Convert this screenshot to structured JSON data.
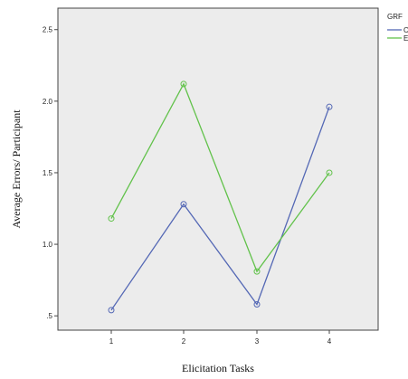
{
  "chart_data": {
    "type": "line",
    "xlabel": "Elicitation Tasks",
    "ylabel": "Average Errors/ Participant",
    "x": [
      1,
      2,
      3,
      4
    ],
    "x_ticks": [
      "1",
      "2",
      "3",
      "4"
    ],
    "ylim": [
      0.4,
      2.65
    ],
    "y_ticks": [
      "2.5",
      "2.0",
      "1.5",
      "1.0",
      ".5"
    ],
    "y_tick_values": [
      2.5,
      2.0,
      1.5,
      1.0,
      0.5
    ],
    "grid": false,
    "background": "#ececec",
    "legend_title": "GRF",
    "legend_position": "right",
    "series": [
      {
        "name": "C",
        "color": "#5468b5",
        "values": [
          0.54,
          1.28,
          0.58,
          1.96
        ]
      },
      {
        "name": "E",
        "color": "#62c24b",
        "values": [
          1.18,
          2.12,
          0.81,
          1.5
        ]
      }
    ]
  }
}
